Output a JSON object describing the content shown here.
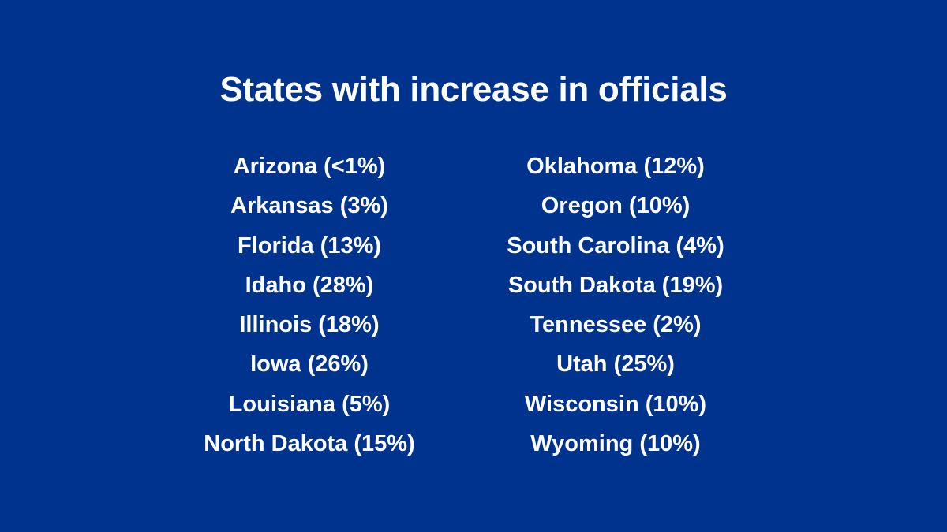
{
  "title": "States with increase in officials",
  "left_column": [
    "Arizona (<1%)",
    "Arkansas (3%)",
    "Florida (13%)",
    "Idaho (28%)",
    "Illinois (18%)",
    "Iowa (26%)",
    "Louisiana (5%)",
    "North Dakota (15%)"
  ],
  "right_column": [
    "Oklahoma (12%)",
    "Oregon (10%)",
    "South Carolina (4%)",
    "South Dakota (19%)",
    "Tennessee (2%)",
    "Utah (25%)",
    "Wisconsin (10%)",
    "Wyoming (10%)"
  ],
  "colors": {
    "background": "#00338d",
    "text": "#ffffff"
  }
}
